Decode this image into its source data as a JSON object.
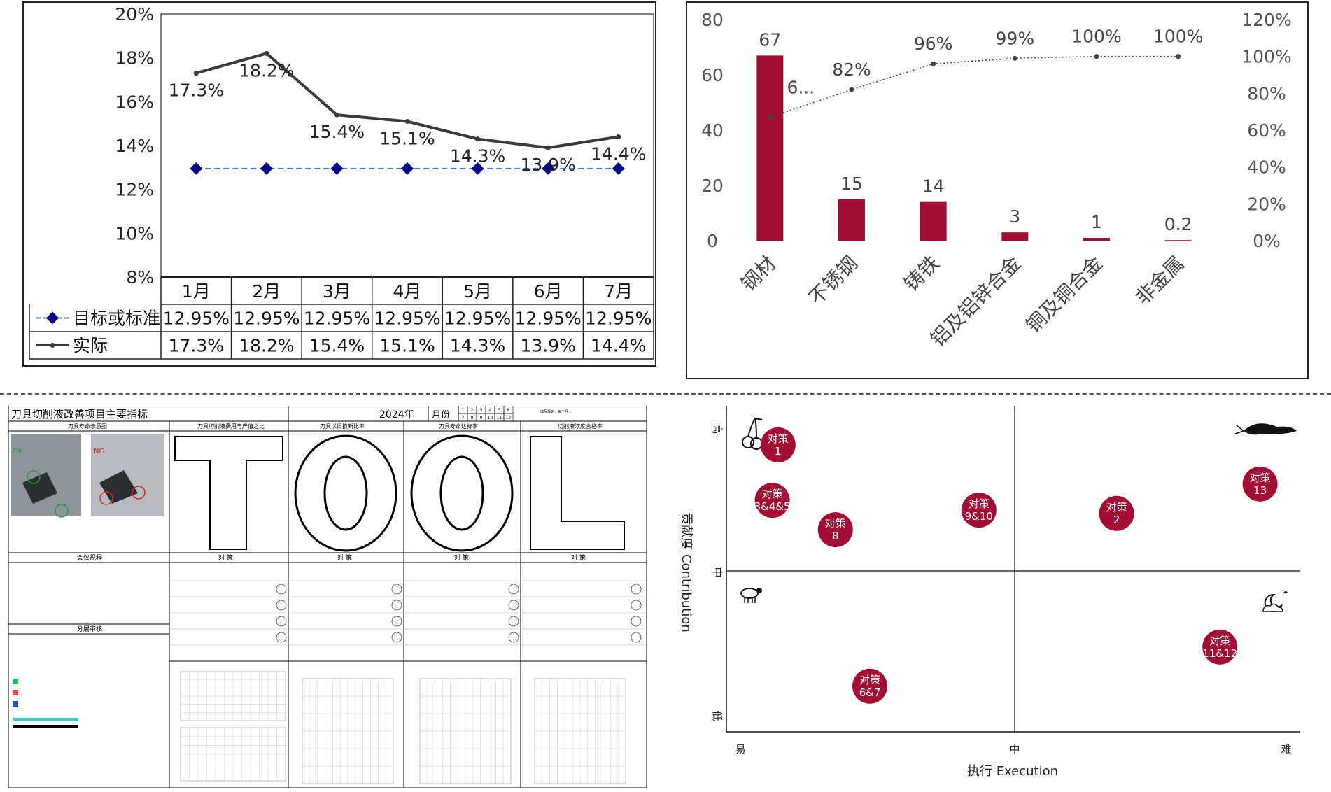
{
  "chart_data": [
    {
      "type": "line",
      "x": [
        "1月",
        "2月",
        "3月",
        "4月",
        "5月",
        "6月",
        "7月"
      ],
      "yticks": [
        "20%",
        "18%",
        "16%",
        "14%",
        "12%",
        "10%",
        "8%"
      ],
      "ylim": [
        0.08,
        0.2
      ],
      "series": [
        {
          "name": "目标或标准",
          "values": [
            0.1295,
            0.1295,
            0.1295,
            0.1295,
            0.1295,
            0.1295,
            0.1295
          ],
          "labels": [
            "12.95%",
            "12.95%",
            "12.95%",
            "12.95%",
            "12.95%",
            "12.95%",
            "12.95%"
          ],
          "color": "#00008b",
          "style": "dashed-diamond"
        },
        {
          "name": "实际",
          "values": [
            0.173,
            0.182,
            0.154,
            0.151,
            0.143,
            0.139,
            0.144
          ],
          "labels": [
            "17.3%",
            "18.2%",
            "15.4%",
            "15.1%",
            "14.3%",
            "13.9%",
            "14.4%"
          ],
          "color": "#3a3a3a",
          "style": "solid"
        }
      ],
      "data_table": true,
      "legend": "data-table"
    },
    {
      "type": "bar",
      "categories": [
        "钢材",
        "不锈钢",
        "铸铁",
        "铝及铝锌合金",
        "铜及铜合金",
        "非金属"
      ],
      "values": [
        67,
        15,
        14,
        3,
        1,
        0.2
      ],
      "value_labels": [
        "67",
        "15",
        "14",
        "3",
        "1",
        "0.2"
      ],
      "bar_color": "#a50e34",
      "ylim": [
        0,
        80
      ],
      "yticks": [
        "0",
        "20",
        "40",
        "60",
        "80"
      ],
      "cumulative": [
        0.67,
        0.82,
        0.96,
        0.99,
        1.0,
        1.0
      ],
      "cumulative_labels": [
        "6...",
        "82%",
        "96%",
        "99%",
        "100%",
        "100%"
      ],
      "y2lim": [
        0,
        1.2
      ],
      "y2ticks": [
        "0%",
        "20%",
        "40%",
        "60%",
        "80%",
        "100%",
        "120%"
      ]
    },
    {
      "type": "scatter",
      "xlabel": "执行 Execution",
      "ylabel": "贡献度 Contribution",
      "xticks": [
        "易",
        "中",
        "难"
      ],
      "yticks": [
        "高",
        "中",
        "低"
      ],
      "xlim": [
        0,
        100
      ],
      "ylim": [
        0,
        100
      ],
      "point_color": "#a50e34",
      "points": [
        {
          "x": 9,
          "y": 88,
          "line1": "对策",
          "line2": "1"
        },
        {
          "x": 8,
          "y": 71,
          "line1": "对策",
          "line2": "3&4&5"
        },
        {
          "x": 19,
          "y": 62,
          "line1": "对策",
          "line2": "8"
        },
        {
          "x": 44,
          "y": 68,
          "line1": "对策",
          "line2": "9&10"
        },
        {
          "x": 68,
          "y": 67,
          "line1": "对策",
          "line2": "2"
        },
        {
          "x": 93,
          "y": 76,
          "line1": "对策",
          "line2": "13"
        },
        {
          "x": 86,
          "y": 26,
          "line1": "对策",
          "line2": "11&12"
        },
        {
          "x": 25,
          "y": 14,
          "line1": "对策",
          "line2": "6&7"
        }
      ]
    }
  ],
  "board": {
    "title": "刀具切削液改善项目主要指标",
    "year": "2024年",
    "month_label": "月份",
    "months": [
      "1",
      "2",
      "3",
      "4",
      "5",
      "6",
      "7",
      "8",
      "9",
      "10",
      "11",
      "12"
    ],
    "note": "填写规定：每个月…",
    "section_heads": [
      "刀具寿命示意图",
      "刀具切削液费用与产值之比",
      "刀具以旧换新比率",
      "刀具寿命达标率",
      "切削液浓度合格率"
    ],
    "ok_label": "OK",
    "ng_label": "NG",
    "meeting_rules": "会议规程",
    "layered_review": "分层审核",
    "measures": [
      "对 策",
      "对 策",
      "对 策",
      "对 策"
    ]
  }
}
